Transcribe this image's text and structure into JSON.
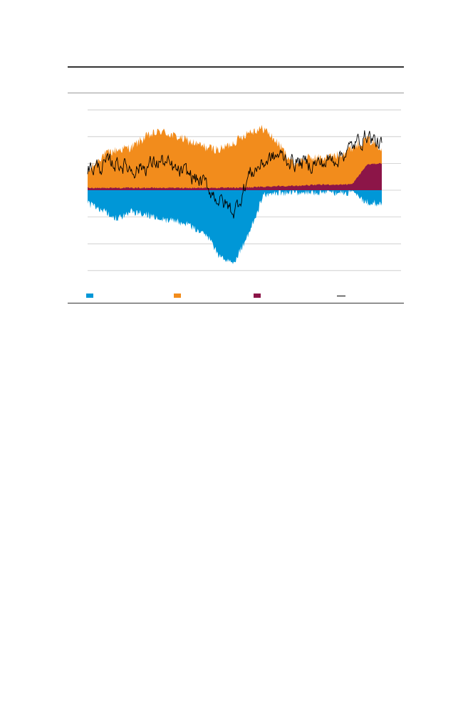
{
  "chart_data": {
    "type": "area",
    "title": "",
    "xlabel": "",
    "ylabel": "",
    "grid": true,
    "gridlines": 7,
    "legend_position": "bottom",
    "series": [
      {
        "key": "blue",
        "color": "#0097d7",
        "kind": "area-negative"
      },
      {
        "key": "orange",
        "color": "#f28c1c",
        "kind": "area-positive"
      },
      {
        "key": "maroon",
        "color": "#8c1548",
        "kind": "area-positive"
      },
      {
        "key": "line",
        "color": "#000000",
        "kind": "line"
      }
    ],
    "points_index": [
      0,
      5,
      10,
      15,
      20,
      25,
      30,
      35,
      40,
      45,
      50,
      55,
      60,
      65,
      70,
      75,
      80,
      85,
      90,
      95,
      100
    ],
    "profiles": {
      "orange_top": [
        0.6,
        1.25,
        1.45,
        1.55,
        1.95,
        2.15,
        1.95,
        1.75,
        1.55,
        1.45,
        1.75,
        2.15,
        2.25,
        1.65,
        0.95,
        1.15,
        1.15,
        1.25,
        1.55,
        1.85,
        1.55
      ],
      "blue_bottom": [
        -0.45,
        -0.7,
        -1.05,
        -0.75,
        -0.85,
        -1.05,
        -1.1,
        -1.3,
        -1.55,
        -2.45,
        -2.6,
        -1.5,
        -0.1,
        -0.05,
        -0.03,
        -0.03,
        -0.02,
        -0.05,
        -0.05,
        -0.4,
        -0.45
      ],
      "maroon_top": [
        0.08,
        0.08,
        0.08,
        0.08,
        0.08,
        0.08,
        0.08,
        0.08,
        0.08,
        0.08,
        0.08,
        0.1,
        0.12,
        0.15,
        0.15,
        0.18,
        0.2,
        0.2,
        0.22,
        0.95,
        1.0
      ],
      "line": [
        0.8,
        0.9,
        1.05,
        0.8,
        0.9,
        1.1,
        0.7,
        0.55,
        0.2,
        -0.4,
        -0.8,
        0.6,
        1.05,
        1.3,
        1.05,
        1.0,
        1.0,
        1.25,
        1.6,
        2.1,
        1.6
      ]
    },
    "legend": [
      {
        "label": "",
        "color": "#0097d7",
        "shape": "box"
      },
      {
        "label": "",
        "color": "#f28c1c",
        "shape": "box"
      },
      {
        "label": "",
        "color": "#8c1548",
        "shape": "box"
      },
      {
        "label": "",
        "color": "#000000",
        "shape": "line"
      }
    ]
  }
}
